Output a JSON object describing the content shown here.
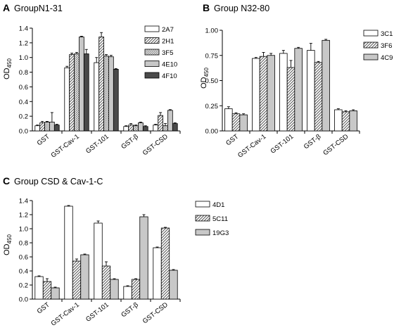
{
  "pattern_colors": {
    "white": "#ffffff",
    "hatch": "#555555",
    "dots": "#bdbdbd",
    "light": "#c8c8c8",
    "dark": "#4a4a4a"
  },
  "chart_data": [
    {
      "type": "bar",
      "panel_label": "A",
      "title": "GroupN1-31",
      "ylabel": "OD",
      "ylabel_sub": "450",
      "ylim": [
        0,
        1.4
      ],
      "yticks": [
        "0.0",
        "0.2",
        "0.4",
        "0.6",
        "0.8",
        "1.0",
        "1.2",
        "1.4"
      ],
      "categories": [
        "GST",
        "GST-Cav-1",
        "GST-101",
        "GST-β",
        "GST-CSD"
      ],
      "legend_position": "right",
      "series": [
        {
          "name": "2A7",
          "pattern": "white",
          "values": [
            0.07,
            0.86,
            0.93,
            0.06,
            0.08
          ],
          "errors": [
            0.01,
            0.02,
            0.07,
            0.01,
            0.01
          ]
        },
        {
          "name": "2H1",
          "pattern": "hatch",
          "values": [
            0.11,
            1.04,
            1.28,
            0.08,
            0.21
          ],
          "errors": [
            0.02,
            0.02,
            0.06,
            0.02,
            0.04
          ]
        },
        {
          "name": "3F5",
          "pattern": "dots",
          "values": [
            0.12,
            1.05,
            1.02,
            0.07,
            0.07
          ],
          "errors": [
            0.01,
            0.02,
            0.02,
            0.01,
            0.03
          ]
        },
        {
          "name": "4E10",
          "pattern": "light",
          "values": [
            0.12,
            1.28,
            1.01,
            0.11,
            0.28
          ],
          "errors": [
            0.13,
            0.01,
            0.02,
            0.01,
            0.01
          ]
        },
        {
          "name": "4F10",
          "pattern": "dark",
          "values": [
            0.08,
            1.05,
            0.84,
            0.06,
            0.1
          ],
          "errors": [
            0.01,
            0.06,
            0.01,
            0.01,
            0.01
          ]
        }
      ]
    },
    {
      "type": "bar",
      "panel_label": "B",
      "title": "Group N32-80",
      "ylabel": "OD",
      "ylabel_sub": "450",
      "ylim": [
        0,
        1.0
      ],
      "yticks": [
        "0.00",
        "0.25",
        "0.50",
        "0.75",
        "1.00"
      ],
      "categories": [
        "GST",
        "GST-Cav-1",
        "GST-101",
        "GST-β",
        "GST-CSD"
      ],
      "legend_position": "top-right",
      "series": [
        {
          "name": "3C1",
          "pattern": "white",
          "values": [
            0.22,
            0.72,
            0.77,
            0.8,
            0.21
          ],
          "errors": [
            0.02,
            0.01,
            0.03,
            0.07,
            0.01
          ]
        },
        {
          "name": "3F6",
          "pattern": "hatch",
          "values": [
            0.17,
            0.74,
            0.63,
            0.68,
            0.19
          ],
          "errors": [
            0.01,
            0.04,
            0.07,
            0.01,
            0.01
          ]
        },
        {
          "name": "4C9",
          "pattern": "light",
          "values": [
            0.16,
            0.75,
            0.82,
            0.9,
            0.2
          ],
          "errors": [
            0.01,
            0.02,
            0.01,
            0.01,
            0.01
          ]
        }
      ]
    },
    {
      "type": "bar",
      "panel_label": "C",
      "title": "Group CSD & Cav-1-C",
      "ylabel": "OD",
      "ylabel_sub": "450",
      "ylim": [
        0,
        1.4
      ],
      "yticks": [
        "0.0",
        "0.2",
        "0.4",
        "0.6",
        "0.8",
        "1.0",
        "1.2",
        "1.4"
      ],
      "categories": [
        "GST",
        "GST-Cav-1",
        "GST-101",
        "GST-β",
        "GST-CSD"
      ],
      "legend_position": "right",
      "series": [
        {
          "name": "4D1",
          "pattern": "white",
          "values": [
            0.32,
            1.32,
            1.08,
            0.18,
            0.73
          ],
          "errors": [
            0.01,
            0.01,
            0.03,
            0.01,
            0.01
          ]
        },
        {
          "name": "5C11",
          "pattern": "hatch",
          "values": [
            0.25,
            0.54,
            0.47,
            0.28,
            1.01
          ],
          "errors": [
            0.04,
            0.03,
            0.06,
            0.01,
            0.01
          ]
        },
        {
          "name": "19G3",
          "pattern": "light",
          "values": [
            0.16,
            0.63,
            0.28,
            1.17,
            0.41
          ],
          "errors": [
            0.01,
            0.01,
            0.01,
            0.03,
            0.01
          ]
        }
      ]
    }
  ]
}
